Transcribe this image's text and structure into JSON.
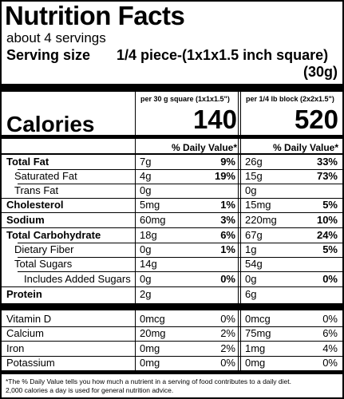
{
  "title": "Nutrition Facts",
  "servings": "about 4 servings",
  "serving_size": {
    "label": "Serving size",
    "value_line1": "1/4 piece-(1x1x1.5 inch square)",
    "value_line2": "(30g)"
  },
  "columns": [
    {
      "header": "per 30 g square (1x1x1.5\")",
      "calories": "140",
      "dv_header": "% Daily Value*"
    },
    {
      "header": "per 1/4 lb block (2x2x1.5\")",
      "calories": "520",
      "dv_header": "% Daily Value*"
    }
  ],
  "calories_label": "Calories",
  "nutrients": [
    {
      "name": "Total Fat",
      "bold": true,
      "c1": "7g",
      "d1": "9%",
      "c2": "26g",
      "d2": "33%"
    },
    {
      "name": "Saturated Fat",
      "bold": false,
      "c1": "4g",
      "d1": "19%",
      "c2": "15g",
      "d2": "73%"
    },
    {
      "name": "Trans Fat",
      "bold": false,
      "c1": "0g",
      "d1": "",
      "c2": "0g",
      "d2": ""
    },
    {
      "name": "Cholesterol",
      "bold": true,
      "c1": "5mg",
      "d1": "1%",
      "c2": "15mg",
      "d2": "5%"
    },
    {
      "name": "Sodium",
      "bold": true,
      "c1": "60mg",
      "d1": "3%",
      "c2": "220mg",
      "d2": "10%"
    },
    {
      "name": "Total Carbohydrate",
      "bold": true,
      "c1": "18g",
      "d1": "6%",
      "c2": "67g",
      "d2": "24%"
    },
    {
      "name": "Dietary Fiber",
      "bold": false,
      "c1": "0g",
      "d1": "1%",
      "c2": "1g",
      "d2": "5%"
    },
    {
      "name": "Total Sugars",
      "bold": false,
      "c1": "14g",
      "d1": "",
      "c2": "54g",
      "d2": ""
    },
    {
      "name": "Includes Added Sugars",
      "bold": false,
      "c1": "0g",
      "d1": "0%",
      "c2": "0g",
      "d2": "0%"
    },
    {
      "name": "Protein",
      "bold": true,
      "c1": "2g",
      "d1": "",
      "c2": "6g",
      "d2": ""
    }
  ],
  "micros": [
    {
      "name": "Vitamin D",
      "c1": "0mcg",
      "d1": "0%",
      "c2": "0mcg",
      "d2": "0%"
    },
    {
      "name": "Calcium",
      "c1": "20mg",
      "d1": "2%",
      "c2": "75mg",
      "d2": "6%"
    },
    {
      "name": "Iron",
      "c1": "0mg",
      "d1": "2%",
      "c2": "1mg",
      "d2": "4%"
    },
    {
      "name": "Potassium",
      "c1": "0mg",
      "d1": "0%",
      "c2": "0mg",
      "d2": "0%"
    }
  ],
  "footnote_line1": "*The % Daily Value tells you how much a nutrient in a serving of food contributes to a daily diet.",
  "footnote_line2": "2,000 calories a day is used for general nutrition advice."
}
